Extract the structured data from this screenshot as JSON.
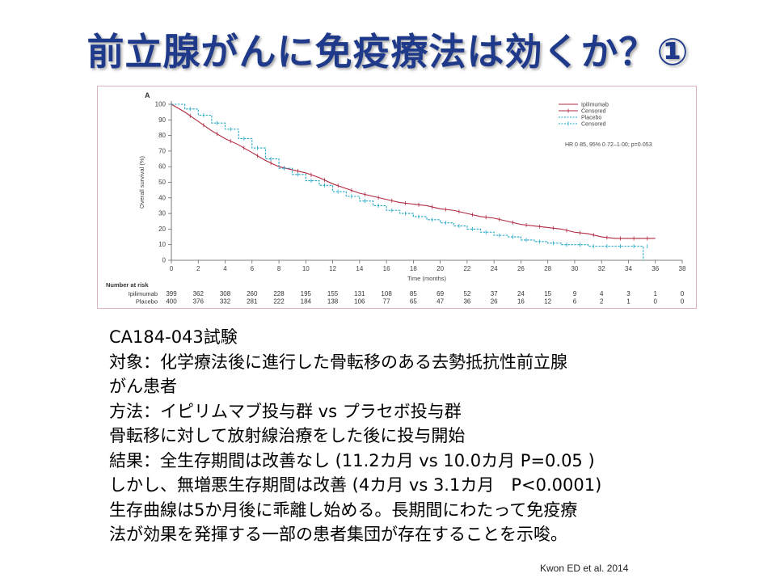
{
  "slide": {
    "title": "前立腺がんに免疫療法は効くか？①",
    "citation": "Kwon ED et al. 2014",
    "body_lines": [
      "CA184-043試験",
      "対象：化学療法後に進行した骨転移のある去勢抵抗性前立腺",
      "がん患者",
      "方法：イピリムマブ投与群 vs プラセボ投与群",
      "骨転移に対して放射線治療をした後に投与開始",
      "結果：全生存期間は改善なし (11.2カ月 vs 10.0カ月 P=0.05 )",
      "しかし、無増悪生存期間は改善 (4カ月 vs 3.1カ月　P<0.0001)",
      "生存曲線は5か月後に乖離し始める。長期間にわたって免疫療",
      "法が効果を発揮する一部の患者集団が存在することを示唆。"
    ]
  },
  "chart_data": {
    "type": "line",
    "panel_label": "A",
    "xlabel": "Time (months)",
    "ylabel": "Overall survival (%)",
    "xlim": [
      0,
      38
    ],
    "ylim": [
      0,
      100
    ],
    "xticks": [
      0,
      2,
      4,
      6,
      8,
      10,
      12,
      14,
      16,
      18,
      20,
      22,
      24,
      26,
      28,
      30,
      32,
      34,
      36,
      38
    ],
    "yticks": [
      0,
      10,
      20,
      30,
      40,
      50,
      60,
      70,
      80,
      90,
      100
    ],
    "annotation": "HR 0·85, 95% 0·72–1·00; p=0·053",
    "legend": {
      "placement": "top-right",
      "entries": [
        {
          "label": "Ipilimumab",
          "style": "solid",
          "color": "#b0283f"
        },
        {
          "label": "Censored",
          "style": "solid-tick",
          "color": "#b0283f"
        },
        {
          "label": "Placebo",
          "style": "dashed",
          "color": "#1fa6c4"
        },
        {
          "label": "Censored",
          "style": "dashed-tick",
          "color": "#1fa6c4"
        }
      ]
    },
    "series": [
      {
        "name": "Ipilimumab",
        "color": "#b0283f",
        "dash": false,
        "x": [
          0,
          1,
          2,
          3,
          4,
          5,
          6,
          7,
          8,
          9,
          10,
          11,
          12,
          13,
          14,
          15,
          16,
          17,
          18,
          19,
          20,
          21,
          22,
          23,
          24,
          25,
          26,
          27,
          28,
          29,
          30,
          31,
          32,
          33,
          34,
          35,
          36
        ],
        "y": [
          100,
          95,
          89,
          83,
          78,
          74,
          69,
          64,
          60,
          58,
          56,
          53,
          49,
          46,
          43,
          41,
          39,
          37,
          36,
          35,
          33,
          32,
          30,
          28,
          27,
          25,
          23,
          22,
          21,
          20,
          18,
          17,
          15,
          14,
          14,
          14,
          14
        ]
      },
      {
        "name": "Placebo",
        "color": "#1fa6c4",
        "dash": true,
        "x": [
          0,
          1,
          2,
          3,
          4,
          5,
          6,
          7,
          8,
          9,
          10,
          11,
          12,
          13,
          14,
          15,
          16,
          17,
          18,
          19,
          20,
          21,
          22,
          23,
          24,
          25,
          26,
          27,
          28,
          29,
          30,
          31,
          32,
          33,
          34,
          35,
          35.1
        ],
        "y": [
          100,
          97,
          93,
          88,
          84,
          78,
          72,
          65,
          59,
          55,
          51,
          48,
          44,
          41,
          38,
          35,
          32,
          30,
          28,
          26,
          24,
          22,
          20,
          18,
          16,
          15,
          13,
          12,
          11,
          10,
          10,
          9,
          9,
          9,
          9,
          9,
          0
        ]
      }
    ],
    "risk_table": {
      "header": "Number at risk",
      "times": [
        0,
        2,
        4,
        6,
        8,
        10,
        12,
        14,
        16,
        18,
        20,
        22,
        24,
        26,
        28,
        30,
        32,
        34,
        36,
        38
      ],
      "rows": [
        {
          "label": "Ipilimumab",
          "values": [
            399,
            362,
            308,
            260,
            228,
            195,
            155,
            131,
            108,
            85,
            69,
            52,
            37,
            24,
            15,
            9,
            4,
            3,
            1,
            0
          ]
        },
        {
          "label": "Placebo",
          "values": [
            400,
            376,
            332,
            281,
            222,
            184,
            138,
            106,
            77,
            65,
            47,
            36,
            26,
            16,
            12,
            6,
            2,
            1,
            0,
            0
          ]
        }
      ]
    }
  }
}
